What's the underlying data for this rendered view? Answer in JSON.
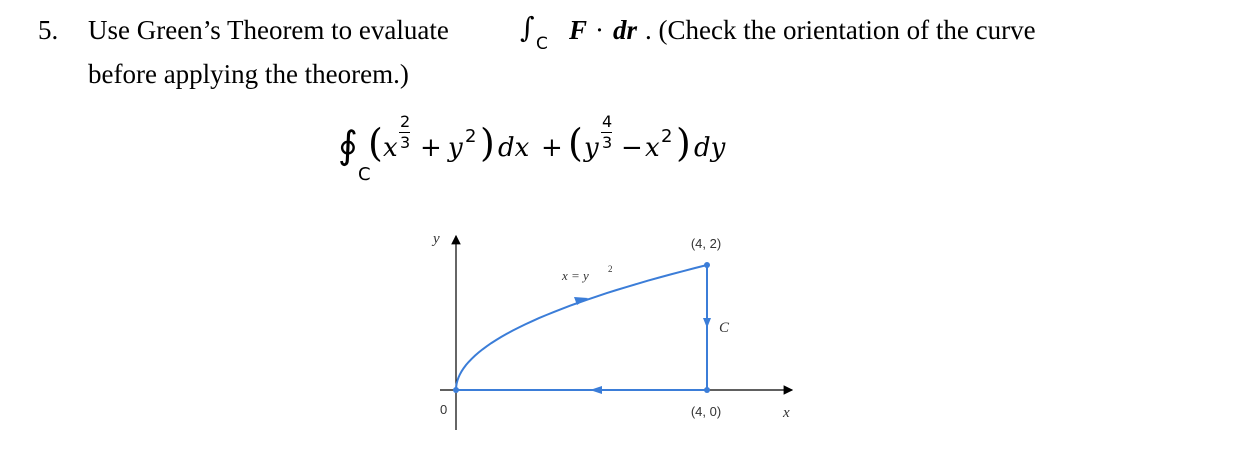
{
  "problem": {
    "number": "5.",
    "text_before": "Use Green’s Theorem to evaluate",
    "integral_sign": "∫",
    "integral_sub": "C",
    "vector_F": "F",
    "dot": "·",
    "vector_dr": "dr",
    "text_after": ". (Check the orientation of the curve",
    "line2": "before applying the theorem.)"
  },
  "formula": {
    "contour": "∮",
    "sub": "C",
    "open1": "(",
    "x1": "x",
    "exp1_num": "2",
    "exp1_den": "3",
    "plus1": "+",
    "y1": "y",
    "exp_y1": "2",
    "close1": ")",
    "dx": "dx",
    "plus2": "+",
    "open2": "(",
    "y2": "y",
    "exp2_num": "4",
    "exp2_den": "3",
    "minus": "−",
    "x2": "x",
    "exp_x2": "2",
    "close2": ")",
    "dy": "dy"
  },
  "graph": {
    "y_axis": "y",
    "x_axis": "x",
    "origin": "0",
    "point_top": "(4, 2)",
    "point_bottom": "(4, 0)",
    "curve_label": "x = y",
    "curve_label_exp": "2",
    "curve_name": "C"
  }
}
